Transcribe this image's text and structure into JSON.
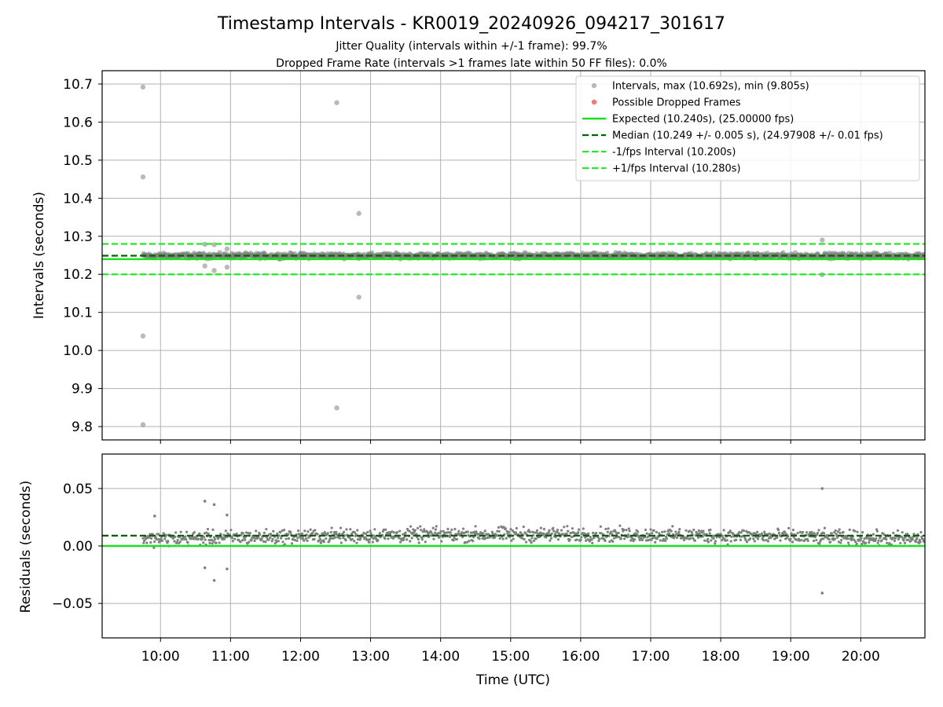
{
  "header": {
    "title": "Timestamp Intervals - KR0019_20240926_094217_301617",
    "subtitle_line1": "Jitter Quality (intervals within +/-1 frame): 99.7%",
    "subtitle_line2": "Dropped Frame Rate (intervals >1 frames late within 50 FF files): 0.0%"
  },
  "colors": {
    "points": "#808080",
    "dropped": "#ff0000",
    "expected": "#1be11b",
    "median": "#006400",
    "bounds": "#1fee1f",
    "grid": "#b0b0b0"
  },
  "chart_data": [
    {
      "type": "scatter",
      "ylabel": "Intervals (seconds)",
      "xlim": [
        "09:10",
        "20:55"
      ],
      "ylim": [
        9.765,
        10.735
      ],
      "yticks": [
        "9.8",
        "9.9",
        "10.0",
        "10.1",
        "10.2",
        "10.3",
        "10.4",
        "10.5",
        "10.6",
        "10.7"
      ],
      "grid": true,
      "legend_position": "top-right",
      "legend": [
        {
          "label": "Intervals, max (10.692s), min (9.805s)",
          "style": "marker-gray"
        },
        {
          "label": "Possible Dropped Frames",
          "style": "marker-red"
        },
        {
          "label": "Expected (10.240s), (25.00000 fps)",
          "style": "line-solid-green"
        },
        {
          "label": "Median (10.249 +/- 0.005 s), (24.97908 +/- 0.01 fps)",
          "style": "line-dash-darkgreen"
        },
        {
          "label": "-1/fps Interval (10.200s)",
          "style": "line-dash-green"
        },
        {
          "label": "+1/fps Interval (10.280s)",
          "style": "line-dash-green"
        }
      ],
      "reference_lines": {
        "expected": 10.24,
        "median": 10.249,
        "lower": 10.2,
        "upper": 10.28
      },
      "dense_band": {
        "x_start": "09:45",
        "x_end": "20:55",
        "center": 10.249,
        "spread": 0.008
      },
      "outliers": [
        {
          "x": "09:45",
          "y": 10.692
        },
        {
          "x": "09:45",
          "y": 10.456
        },
        {
          "x": "09:45",
          "y": 10.038
        },
        {
          "x": "09:45",
          "y": 9.805
        },
        {
          "x": "10:38",
          "y": 10.279
        },
        {
          "x": "10:38",
          "y": 10.222
        },
        {
          "x": "10:46",
          "y": 10.278
        },
        {
          "x": "10:46",
          "y": 10.21
        },
        {
          "x": "10:57",
          "y": 10.267
        },
        {
          "x": "10:57",
          "y": 10.219
        },
        {
          "x": "12:31",
          "y": 10.651
        },
        {
          "x": "12:31",
          "y": 9.849
        },
        {
          "x": "12:50",
          "y": 10.36
        },
        {
          "x": "12:50",
          "y": 10.14
        },
        {
          "x": "19:27",
          "y": 10.29
        },
        {
          "x": "19:27",
          "y": 10.199
        }
      ]
    },
    {
      "type": "scatter",
      "xlabel": "Time (UTC)",
      "ylabel": "Residuals (seconds)",
      "xlim": [
        "09:10",
        "20:55"
      ],
      "ylim": [
        -0.08,
        0.08
      ],
      "yticks": [
        "−0.05",
        "0.00",
        "0.05"
      ],
      "yticks_values": [
        -0.05,
        0.0,
        0.05
      ],
      "xticks": [
        "10:00",
        "11:00",
        "12:00",
        "13:00",
        "14:00",
        "15:00",
        "16:00",
        "17:00",
        "18:00",
        "19:00",
        "20:00"
      ],
      "grid": true,
      "reference_lines": {
        "zero": 0.0,
        "median": 0.009
      },
      "dense_band": {
        "x_start": "09:45",
        "x_end": "20:55",
        "center": 0.006,
        "spread": 0.008
      },
      "outliers": [
        {
          "x": "10:38",
          "y": 0.039
        },
        {
          "x": "10:38",
          "y": -0.019
        },
        {
          "x": "10:46",
          "y": 0.036
        },
        {
          "x": "10:46",
          "y": -0.03
        },
        {
          "x": "10:57",
          "y": 0.027
        },
        {
          "x": "10:57",
          "y": -0.02
        },
        {
          "x": "09:55",
          "y": 0.026
        },
        {
          "x": "19:27",
          "y": 0.05
        },
        {
          "x": "19:27",
          "y": -0.041
        }
      ]
    }
  ]
}
